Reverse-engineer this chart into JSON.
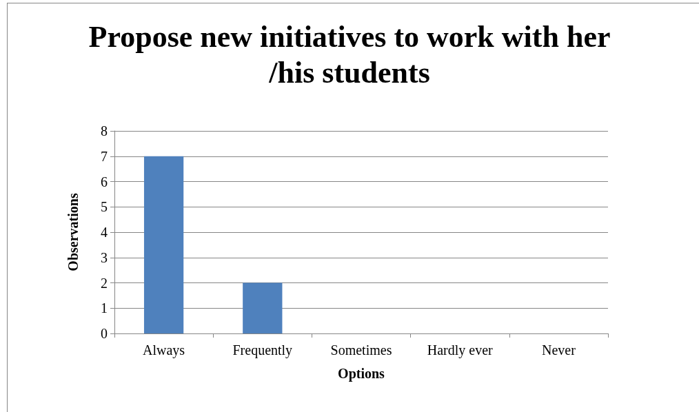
{
  "chart_data": {
    "type": "bar",
    "title": "Propose new initiatives to work with her/his students",
    "xlabel": "Options",
    "ylabel": "Observations",
    "categories": [
      "Always",
      "Frequently",
      "Sometimes",
      "Hardly ever",
      "Never"
    ],
    "values": [
      7,
      2,
      0,
      0,
      0
    ],
    "color": "#4f81bd",
    "ylim": [
      0,
      8
    ],
    "yticks": [
      0,
      1,
      2,
      3,
      4,
      5,
      6,
      7,
      8
    ],
    "grid": "y"
  }
}
